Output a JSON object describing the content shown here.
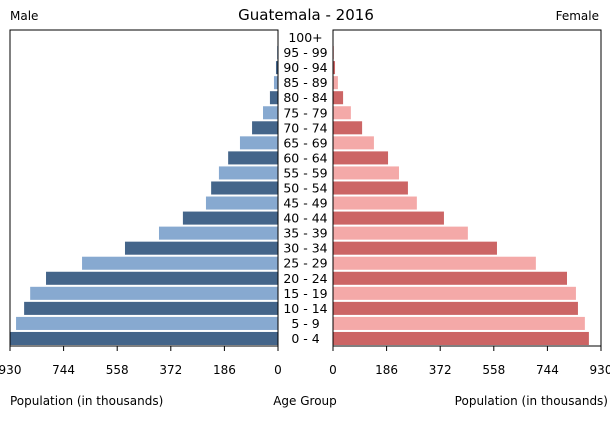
{
  "chart_data": {
    "type": "bar",
    "title": "Guatemala - 2016",
    "left_label": "Male",
    "right_label": "Female",
    "xlabel_left": "Population (in thousands)",
    "xlabel_center": "Age Group",
    "xlabel_right": "Population (in thousands)",
    "xlim": [
      0,
      930
    ],
    "ticks": [
      "930",
      "744",
      "558",
      "372",
      "186",
      "0"
    ],
    "ticks_right": [
      "0",
      "186",
      "372",
      "558",
      "744",
      "930"
    ],
    "tick_values": [
      930,
      744,
      558,
      372,
      186,
      0
    ],
    "categories": [
      "0 - 4",
      "5 - 9",
      "10 - 14",
      "15 - 19",
      "20 - 24",
      "25 - 29",
      "30 - 34",
      "35 - 39",
      "40 - 44",
      "45 - 49",
      "50 - 54",
      "55 - 59",
      "60 - 64",
      "65 - 69",
      "70 - 74",
      "75 - 79",
      "80 - 84",
      "85 - 89",
      "90 - 94",
      "95 - 99",
      "100+"
    ],
    "series": [
      {
        "name": "Male",
        "values": [
          930,
          909,
          881,
          860,
          805,
          680,
          531,
          413,
          330,
          250,
          232,
          205,
          173,
          132,
          90,
          52,
          28,
          14,
          7,
          3,
          1
        ],
        "colors": [
          "#44658a",
          "#87a9d0"
        ]
      },
      {
        "name": "Female",
        "values": [
          888,
          874,
          850,
          843,
          812,
          704,
          569,
          468,
          385,
          291,
          260,
          229,
          191,
          142,
          101,
          62,
          35,
          17,
          7,
          3,
          1
        ],
        "colors": [
          "#cc6565",
          "#f4a9a8"
        ]
      }
    ]
  }
}
